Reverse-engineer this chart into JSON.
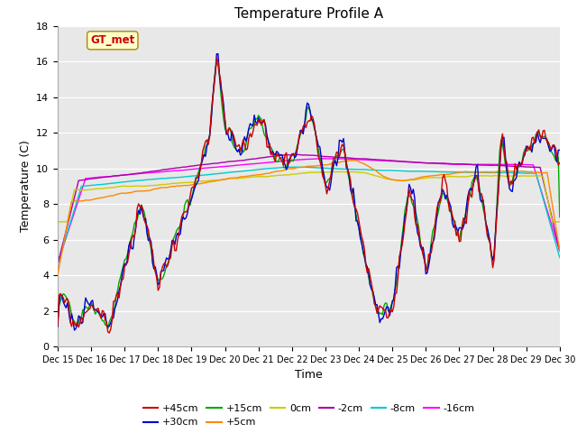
{
  "title": "Temperature Profile A",
  "xlabel": "Time",
  "ylabel": "Temperature (C)",
  "ylim": [
    0,
    18
  ],
  "xlim": [
    0,
    360
  ],
  "x_ticks": [
    0,
    24,
    48,
    72,
    96,
    120,
    144,
    168,
    192,
    216,
    240,
    264,
    288,
    312,
    336,
    360
  ],
  "x_tick_labels": [
    "Dec 15",
    "Dec 16",
    "Dec 17",
    "Dec 18",
    "Dec 19",
    "Dec 20",
    "Dec 21",
    "Dec 22",
    "Dec 23",
    "Dec 24",
    "Dec 25",
    "Dec 26",
    "Dec 27",
    "Dec 28",
    "Dec 29",
    "Dec 30"
  ],
  "yticks": [
    0,
    2,
    4,
    6,
    8,
    10,
    12,
    14,
    16,
    18
  ],
  "series": {
    "+45cm": {
      "color": "#cc0000",
      "lw": 1.0
    },
    "+30cm": {
      "color": "#0000cc",
      "lw": 1.0
    },
    "+15cm": {
      "color": "#00aa00",
      "lw": 1.0
    },
    "+5cm": {
      "color": "#ff8800",
      "lw": 1.0
    },
    "0cm": {
      "color": "#cccc00",
      "lw": 1.0
    },
    "-2cm": {
      "color": "#aa00aa",
      "lw": 1.0
    },
    "-8cm": {
      "color": "#00cccc",
      "lw": 1.0
    },
    "-16cm": {
      "color": "#ff00ff",
      "lw": 1.0
    }
  },
  "annotation_text": "GT_met",
  "annotation_color": "#cc0000",
  "annotation_bg": "#ffffcc",
  "plot_bg": "#e8e8e8",
  "grid_color": "#ffffff",
  "legend_ncol_row1": 6,
  "legend_ncol_row2": 2
}
